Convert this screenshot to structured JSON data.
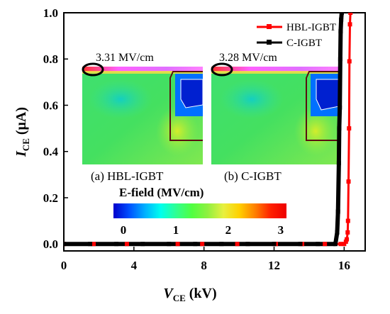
{
  "chart_data": {
    "type": "line",
    "title": "",
    "xlabel": {
      "main": "V",
      "sub": "CE",
      "unit": " (kV)"
    },
    "ylabel": {
      "main": "I",
      "sub": "CE",
      "unit": " (μA)"
    },
    "xlim": [
      0,
      17.2
    ],
    "ylim": [
      -0.03,
      1.0
    ],
    "xticks": [
      0,
      4,
      8,
      12,
      16
    ],
    "yticks": [
      0.0,
      0.2,
      0.4,
      0.6,
      0.8,
      1.0
    ],
    "xtick_labels": [
      "0",
      "4",
      "8",
      "12",
      "16"
    ],
    "ytick_labels": [
      "0.0",
      "0.2",
      "0.4",
      "0.6",
      "0.8",
      "1.0"
    ],
    "legend_position": "top-right",
    "grid": false,
    "series": [
      {
        "name": "HBL-IGBT",
        "color": "#ff0000",
        "x": [
          0,
          1.7,
          3.6,
          6.5,
          7.9,
          9.9,
          12.1,
          13.6,
          14.9,
          15.8,
          16.0,
          16.1,
          16.15,
          16.2,
          16.22,
          16.25,
          16.28,
          16.3,
          16.33,
          16.36
        ],
        "y": [
          0,
          0,
          0,
          0,
          0,
          0,
          0,
          0,
          0,
          0,
          0.0,
          0.01,
          0.02,
          0.05,
          0.1,
          0.27,
          0.5,
          0.79,
          0.95,
          1.0
        ]
      },
      {
        "name": "C-IGBT",
        "color": "#000000",
        "x": [
          0,
          1.5,
          3.0,
          4.5,
          6.0,
          7.5,
          9.0,
          10.5,
          12.0,
          13.5,
          14.5,
          15.5,
          15.6,
          15.65,
          15.7,
          15.72,
          15.75,
          15.78,
          15.8,
          15.83,
          15.86
        ],
        "y": [
          0,
          0,
          0,
          0,
          0,
          0,
          0,
          0,
          0,
          0,
          0,
          0.0,
          0.05,
          0.14,
          0.35,
          0.5,
          0.59,
          0.8,
          0.92,
          0.97,
          1.0
        ]
      }
    ],
    "insets": [
      {
        "caption": "(a) HBL-IGBT",
        "peak_label": "3.31 MV/cm"
      },
      {
        "caption": "(b) C-IGBT",
        "peak_label": "3.28 MV/cm"
      }
    ],
    "colorbar": {
      "title": "E-field (MV/cm)",
      "min": 0,
      "max": 3.3,
      "ticks": [
        0,
        1,
        2,
        3
      ],
      "tick_labels": [
        "0",
        "1",
        "2",
        "3"
      ],
      "colors": [
        "#0000cc",
        "#0050ff",
        "#00b0ff",
        "#00ffee",
        "#30ff90",
        "#50ff40",
        "#90f040",
        "#e8f040",
        "#ffd000",
        "#ff8000",
        "#ff2000",
        "#ee0000"
      ]
    }
  }
}
